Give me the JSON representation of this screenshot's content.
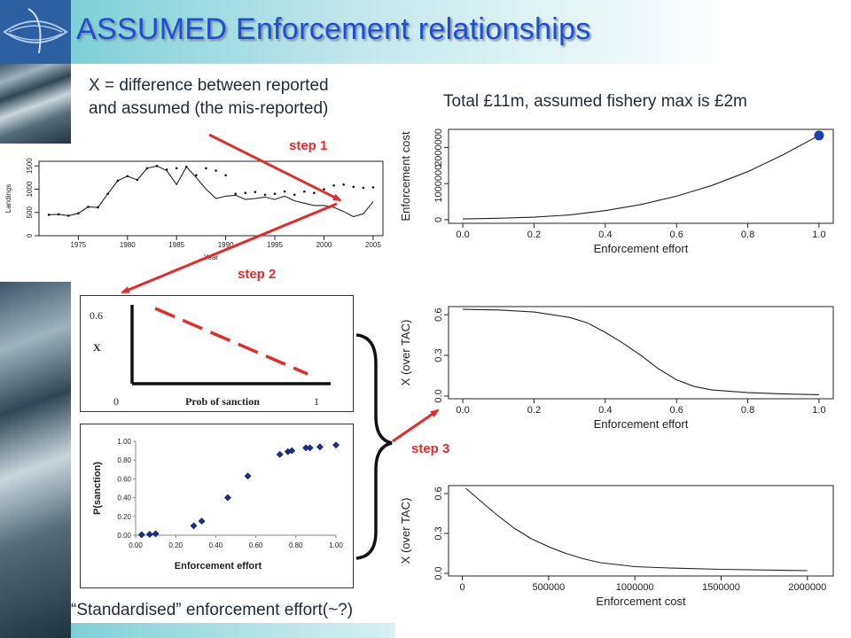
{
  "slide": {
    "title": "ASSUMED Enforcement relationships",
    "note_x_line1": "X = difference between reported",
    "note_x_line2": "and assumed (the mis-reported)",
    "note_total": "Total £11m, assumed fishery max is £2m",
    "footer_note": "“Standardised” enforcement effort(~?)",
    "steps": [
      "step 1",
      "step 2",
      "step 3"
    ],
    "colors": {
      "title": "#1e4fd0",
      "arrow": "#e52a2a",
      "marker": "#1a3fb0"
    }
  },
  "chart_data": [
    {
      "id": "landings",
      "type": "line",
      "xlabel": "Year",
      "ylabel": "Landings",
      "xticks": [
        1975,
        1980,
        1985,
        1990,
        1995,
        2000,
        2005
      ],
      "yticks": [
        0,
        500,
        1000,
        1500
      ],
      "xlim": [
        1971,
        2006
      ],
      "ylim": [
        0,
        1600
      ],
      "series": [
        {
          "style": "line",
          "x": [
            1972,
            1973,
            1974,
            1975,
            1976,
            1977,
            1978,
            1979,
            1980,
            1981,
            1982,
            1983,
            1984,
            1985,
            1986,
            1987,
            1988,
            1989,
            1990,
            1991,
            1992,
            1993,
            1994,
            1995,
            1996,
            1997,
            1998,
            1999,
            2000,
            2001,
            2002,
            2003,
            2004,
            2005
          ],
          "values": [
            450,
            460,
            430,
            480,
            620,
            610,
            900,
            1180,
            1280,
            1200,
            1450,
            1500,
            1400,
            1100,
            1480,
            1250,
            1000,
            800,
            850,
            870,
            780,
            800,
            830,
            780,
            850,
            750,
            700,
            650,
            650,
            610,
            520,
            410,
            470,
            730
          ]
        },
        {
          "style": "points",
          "x": [
            1972,
            1973,
            1974,
            1975,
            1976,
            1977,
            1978,
            1979,
            1980,
            1981,
            1982,
            1983,
            1984,
            1985,
            1986,
            1987,
            1988,
            1989,
            1990,
            1991,
            1992,
            1993,
            1994,
            1995,
            1996,
            1997,
            1998,
            1999,
            2000,
            2001,
            2002,
            2003,
            2004,
            2005
          ],
          "values": [
            450,
            460,
            430,
            480,
            620,
            610,
            900,
            1180,
            1280,
            1200,
            1450,
            1500,
            1420,
            1450,
            1480,
            1300,
            1450,
            1400,
            1300,
            900,
            920,
            940,
            880,
            900,
            950,
            880,
            950,
            920,
            1000,
            1080,
            1100,
            1050,
            1030,
            1040
          ]
        }
      ]
    },
    {
      "id": "x-vs-prob",
      "type": "line",
      "xlabel": "Prob of sanction",
      "ylabel": "X",
      "x_tick_labels": [
        "0",
        "1"
      ],
      "y_tick_labels": [
        "0.6"
      ],
      "series": [
        {
          "style": "dashed",
          "x": [
            0,
            1
          ],
          "values": [
            0.6,
            0
          ]
        }
      ]
    },
    {
      "id": "psanction",
      "type": "scatter",
      "xlabel": "Enforcement effort",
      "ylabel": "P(sanction)",
      "xticks": [
        "0.00",
        "0.20",
        "0.40",
        "0.60",
        "0.80",
        "1.00"
      ],
      "yticks": [
        "0.00",
        "0.20",
        "0.40",
        "0.60",
        "0.80",
        "1.00"
      ],
      "xlim": [
        0,
        1
      ],
      "ylim": [
        0,
        1
      ],
      "x": [
        0.03,
        0.07,
        0.1,
        0.29,
        0.33,
        0.46,
        0.56,
        0.72,
        0.76,
        0.78,
        0.85,
        0.87,
        0.92,
        1.0
      ],
      "values": [
        0.005,
        0.01,
        0.015,
        0.1,
        0.15,
        0.4,
        0.63,
        0.86,
        0.89,
        0.9,
        0.93,
        0.93,
        0.94,
        0.96
      ]
    },
    {
      "id": "cost-vs-effort",
      "type": "line",
      "xlabel": "Enforcement effort",
      "ylabel": "Enforcement cost",
      "xticks": [
        "0.0",
        "0.2",
        "0.4",
        "0.6",
        "0.8",
        "1.0"
      ],
      "yticks": [
        "0",
        "1000000",
        "2000000"
      ],
      "xlim": [
        -0.04,
        1.04
      ],
      "ylim": [
        -100000,
        2500000
      ],
      "series": [
        {
          "x": [
            0,
            0.1,
            0.2,
            0.3,
            0.4,
            0.5,
            0.6,
            0.7,
            0.8,
            0.9,
            1.0
          ],
          "values": [
            20000,
            40000,
            70000,
            130000,
            250000,
            420000,
            650000,
            950000,
            1330000,
            1800000,
            2330000
          ]
        }
      ],
      "highlight": {
        "x": 1.0,
        "y": 2330000
      }
    },
    {
      "id": "x-vs-effort",
      "type": "line",
      "xlabel": "Enforcement effort",
      "ylabel": "X (over TAC)",
      "xticks": [
        "0.0",
        "0.2",
        "0.4",
        "0.6",
        "0.8",
        "1.0"
      ],
      "yticks": [
        "0.0",
        "0.3",
        "0.6"
      ],
      "xlim": [
        -0.04,
        1.04
      ],
      "ylim": [
        -0.02,
        0.66
      ],
      "series": [
        {
          "x": [
            0,
            0.1,
            0.2,
            0.3,
            0.35,
            0.4,
            0.45,
            0.5,
            0.55,
            0.6,
            0.65,
            0.7,
            0.8,
            0.9,
            1.0
          ],
          "values": [
            0.64,
            0.635,
            0.62,
            0.58,
            0.54,
            0.47,
            0.39,
            0.3,
            0.2,
            0.12,
            0.07,
            0.045,
            0.025,
            0.015,
            0.01
          ]
        }
      ]
    },
    {
      "id": "x-vs-cost",
      "type": "line",
      "xlabel": "Enforcement cost",
      "ylabel": "X (over TAC)",
      "xticks": [
        "0",
        "500000",
        "1000000",
        "1500000",
        "2000000"
      ],
      "yticks": [
        "0.0",
        "0.3",
        "0.6"
      ],
      "xlim": [
        -80000,
        2150000
      ],
      "ylim": [
        -0.02,
        0.66
      ],
      "series": [
        {
          "x": [
            20000,
            100000,
            200000,
            300000,
            400000,
            500000,
            600000,
            700000,
            800000,
            1000000,
            1200000,
            1500000,
            2000000
          ],
          "values": [
            0.64,
            0.55,
            0.44,
            0.34,
            0.26,
            0.2,
            0.15,
            0.11,
            0.08,
            0.05,
            0.04,
            0.03,
            0.02
          ]
        }
      ]
    }
  ]
}
